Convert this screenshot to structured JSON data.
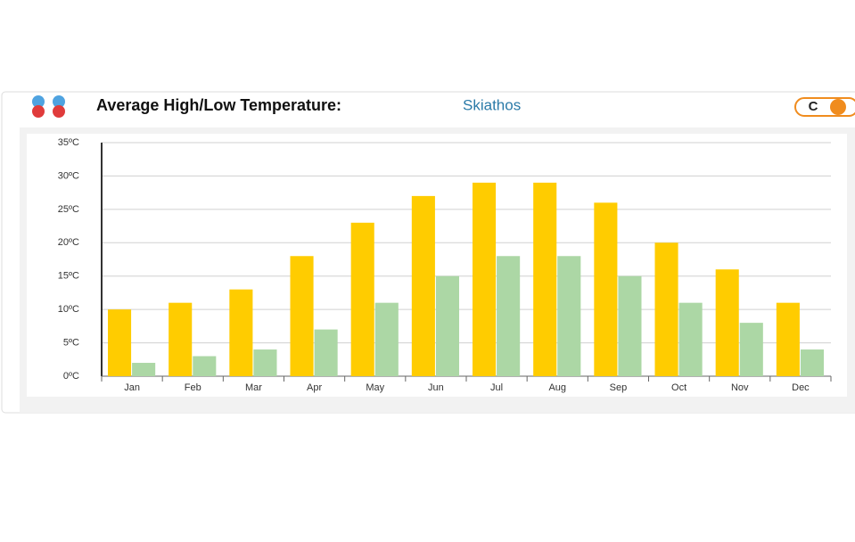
{
  "unit_toggle": "C",
  "chart_data": {
    "type": "bar",
    "title": "Average High/Low Temperature:",
    "subtitle": "Skiathos",
    "categories": [
      "Jan",
      "Feb",
      "Mar",
      "Apr",
      "May",
      "Jun",
      "Jul",
      "Aug",
      "Sep",
      "Oct",
      "Nov",
      "Dec"
    ],
    "series": [
      {
        "color": "#ffcc00",
        "values": [
          10,
          11,
          13,
          18,
          23,
          27,
          29,
          29,
          26,
          20,
          16,
          11
        ]
      },
      {
        "color": "#acd7a5",
        "values": [
          2,
          3,
          4,
          7,
          11,
          15,
          18,
          18,
          15,
          11,
          8,
          4
        ]
      }
    ],
    "ylim": [
      0,
      35
    ],
    "yticks": [
      {
        "value": 0,
        "label": "0ºC"
      },
      {
        "value": 5,
        "label": "5ºC"
      },
      {
        "value": 10,
        "label": "10ºC"
      },
      {
        "value": 15,
        "label": "15ºC"
      },
      {
        "value": 20,
        "label": "20ºC"
      },
      {
        "value": 25,
        "label": "25ºC"
      },
      {
        "value": 30,
        "label": "30ºC"
      },
      {
        "value": 35,
        "label": "35ºC"
      }
    ],
    "grid": true
  }
}
